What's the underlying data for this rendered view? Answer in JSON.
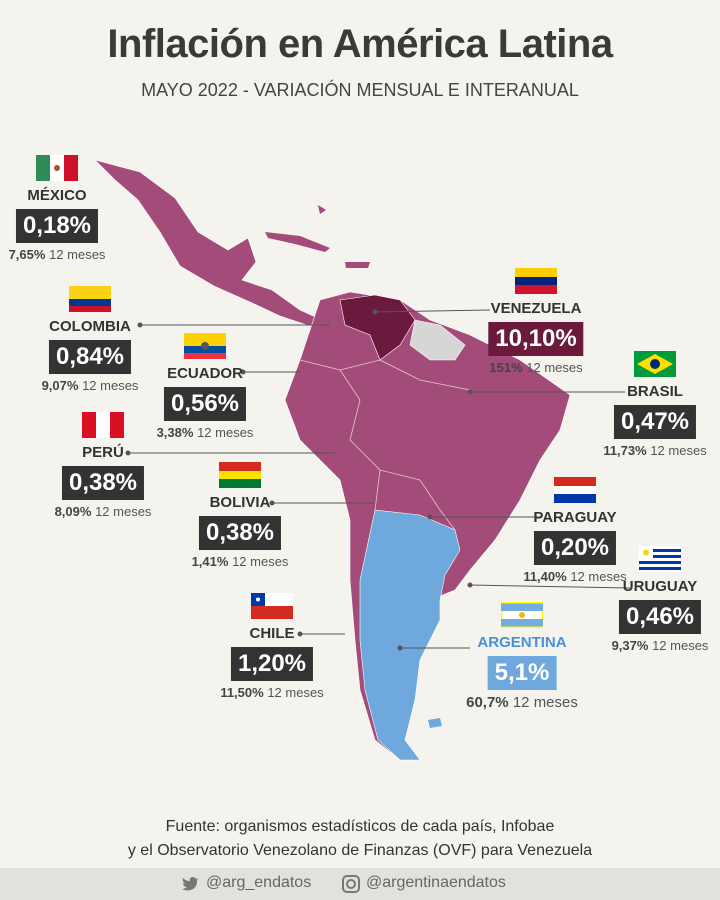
{
  "header": {
    "title": "Inflación en América Latina",
    "subtitle": "MAYO 2022 - VARIACIÓN MENSUAL E INTERANUAL"
  },
  "annual_suffix": "12 meses",
  "countries": [
    {
      "name": "MÉXICO",
      "monthly": "0,18%",
      "annual": "7,65%"
    },
    {
      "name": "COLOMBIA",
      "monthly": "0,84%",
      "annual": "9,07%"
    },
    {
      "name": "ECUADOR",
      "monthly": "0,56%",
      "annual": "3,38%"
    },
    {
      "name": "PERÚ",
      "monthly": "0,38%",
      "annual": "8,09%"
    },
    {
      "name": "BOLIVIA",
      "monthly": "0,38%",
      "annual": "1,41%"
    },
    {
      "name": "CHILE",
      "monthly": "1,20%",
      "annual": "11,50%"
    },
    {
      "name": "VENEZUELA",
      "monthly": "10,10%",
      "annual": "151%"
    },
    {
      "name": "BRASIL",
      "monthly": "0,47%",
      "annual": "11,73%"
    },
    {
      "name": "PARAGUAY",
      "monthly": "0,20%",
      "annual": "11,40%"
    },
    {
      "name": "URUGUAY",
      "monthly": "0,46%",
      "annual": "9,37%"
    },
    {
      "name": "ARGENTINA",
      "monthly": "5,1%",
      "annual": "60,7%"
    }
  ],
  "footer": {
    "source_line_1": "Fuente: organismos estadísticos de cada país, Infobae",
    "source_line_2": "y el Observatorio Venezolano de Finanzas (OVF) para Venezuela",
    "twitter": "@arg_endatos",
    "instagram": "@argentinaendatos"
  }
}
